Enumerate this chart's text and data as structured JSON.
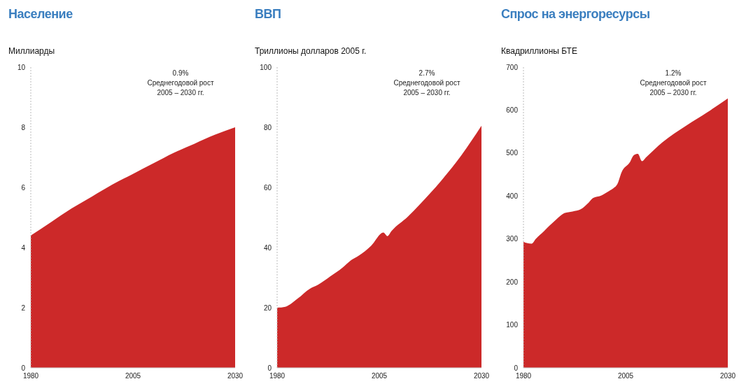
{
  "chart_data": [
    {
      "type": "area",
      "title": "Население",
      "ylabel": "Миллиарды",
      "annotations": [
        "0.9%\nСреднегодовой рост\n2005 – 2030 гг."
      ],
      "x": [
        1980,
        1985,
        1990,
        1995,
        2000,
        2005,
        2010,
        2015,
        2020,
        2025,
        2030
      ],
      "series": [
        {
          "color": "#cc2929",
          "values": [
            4.4,
            4.85,
            5.3,
            5.7,
            6.1,
            6.45,
            6.8,
            7.15,
            7.45,
            7.75,
            8.0
          ]
        }
      ],
      "xlim": [
        1980,
        2030
      ],
      "xticks": [
        1980,
        2005,
        2030
      ],
      "ylim": [
        0,
        10
      ],
      "yticks": [
        0,
        2,
        4,
        6,
        8,
        10
      ],
      "grid": false,
      "legend": false
    },
    {
      "type": "area",
      "title": "ВВП",
      "ylabel": "Триллионы долларов 2005 г.",
      "annotations": [
        "2.7%\nСреднегодовой рост\n2005 – 2030 гг."
      ],
      "x": [
        1980,
        1982,
        1985,
        1988,
        1990,
        1993,
        1996,
        1998,
        2000,
        2003,
        2006,
        2007,
        2008,
        2012,
        2015,
        2020,
        2025,
        2030
      ],
      "series": [
        {
          "color": "#cc2929",
          "values": [
            20,
            20.3,
            23,
            26.3,
            27.6,
            30.4,
            33.3,
            35.7,
            37.3,
            40.6,
            45,
            43.8,
            45.5,
            50.3,
            54.5,
            62,
            70.5,
            80.5
          ]
        }
      ],
      "xlim": [
        1980,
        2030
      ],
      "xticks": [
        1980,
        2005,
        2030
      ],
      "ylim": [
        0,
        100
      ],
      "yticks": [
        0,
        20,
        40,
        60,
        80,
        100
      ],
      "grid": false,
      "legend": false
    },
    {
      "type": "area",
      "title": "Спрос на энергоресурсы",
      "ylabel": "Квадриллионы БТЕ",
      "annotations": [
        "1.2%\nСреднегодовой рост\n2005 – 2030 гг."
      ],
      "x": [
        1980,
        1982,
        1983,
        1985,
        1988,
        1990,
        1992,
        1994,
        1996,
        1997,
        1999,
        2001,
        2002,
        2003,
        2004,
        2006,
        2007,
        2008,
        2009,
        2010,
        2012,
        2014,
        2020,
        2025,
        2030
      ],
      "series": [
        {
          "color": "#cc2929",
          "values": [
            293,
            289,
            300,
            318,
            345,
            360,
            364,
            369,
            385,
            395,
            401,
            412,
            418,
            428,
            455,
            478,
            495,
            498,
            481,
            490,
            508,
            525,
            565,
            595,
            627
          ]
        }
      ],
      "xlim": [
        1980,
        2030
      ],
      "xticks": [
        1980,
        2005,
        2030
      ],
      "ylim": [
        0,
        700
      ],
      "yticks": [
        0,
        100,
        200,
        300,
        400,
        500,
        600,
        700
      ],
      "grid": false,
      "legend": false
    }
  ]
}
